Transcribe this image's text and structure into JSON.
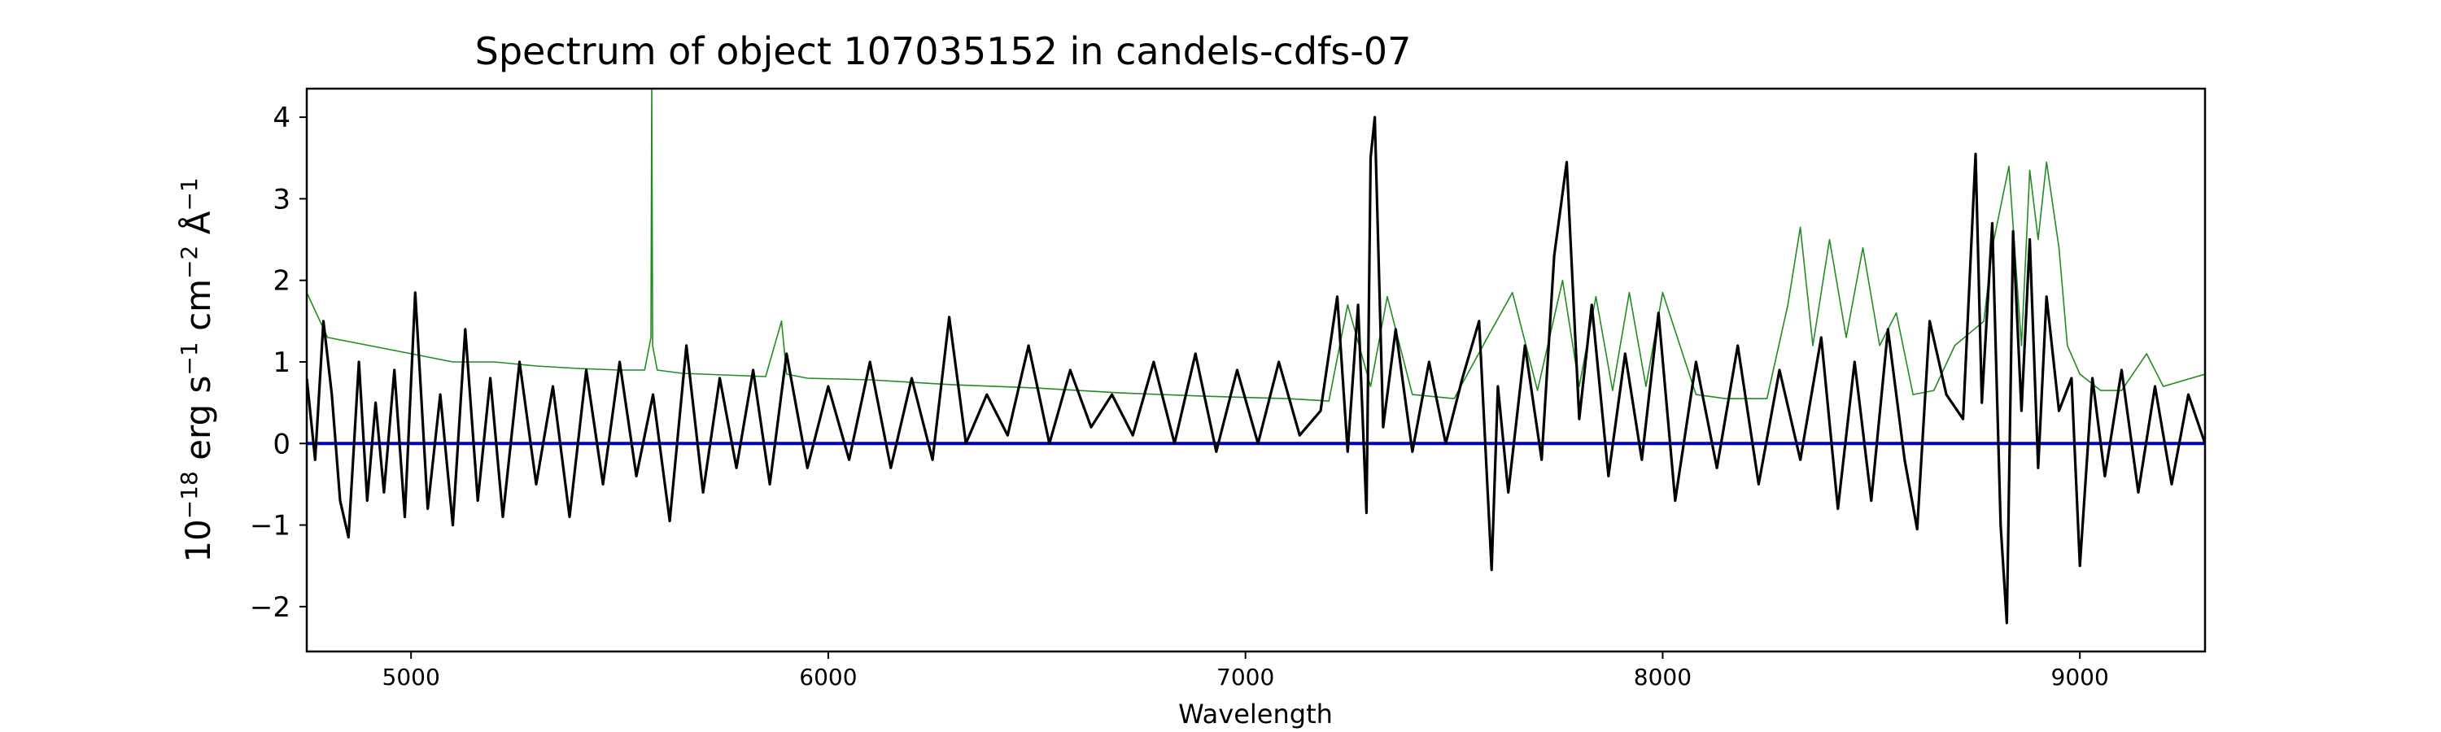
{
  "chart_data": {
    "type": "line",
    "title": "Spectrum of object 107035152 in candels-cdfs-07",
    "xlabel": "Wavelength",
    "ylabel_parts": {
      "base": "10",
      "exp": "−18",
      "units": [
        {
          "t": " erg s",
          "e": "−1"
        },
        {
          "t": " cm",
          "e": "−2"
        },
        {
          "t": " Å",
          "e": "−1"
        }
      ]
    },
    "xlim": [
      4750,
      9300
    ],
    "ylim": [
      -2.55,
      4.35
    ],
    "xticks": [
      5000,
      6000,
      7000,
      8000,
      9000
    ],
    "xtick_labels": [
      "5000",
      "6000",
      "7000",
      "8000",
      "9000"
    ],
    "yticks": [
      -2,
      -1,
      0,
      1,
      2,
      3,
      4
    ],
    "ytick_labels": [
      "−2",
      "−1",
      "0",
      "1",
      "2",
      "3",
      "4"
    ],
    "grid": false,
    "series": [
      {
        "role": "zero-line",
        "color": "#0000cc",
        "x": [
          4750,
          9300
        ],
        "y": [
          0,
          0
        ]
      },
      {
        "role": "noise",
        "color": "#228b22",
        "x": [
          4750,
          4800,
          4850,
          4900,
          5000,
          5100,
          5200,
          5300,
          5400,
          5500,
          5560,
          5575,
          5577,
          5579,
          5590,
          5650,
          5750,
          5850,
          5888,
          5900,
          5950,
          6100,
          6300,
          6500,
          6700,
          6900,
          7100,
          7200,
          7245,
          7300,
          7340,
          7400,
          7500,
          7580,
          7640,
          7700,
          7760,
          7800,
          7840,
          7880,
          7920,
          7960,
          8000,
          8080,
          8150,
          8250,
          8300,
          8330,
          8360,
          8400,
          8440,
          8480,
          8520,
          8560,
          8600,
          8650,
          8700,
          8770,
          8790,
          8830,
          8860,
          8880,
          8900,
          8920,
          8950,
          8970,
          9000,
          9050,
          9100,
          9160,
          9200,
          9300
        ],
        "y": [
          1.85,
          1.3,
          1.25,
          1.2,
          1.1,
          1.0,
          1.0,
          0.95,
          0.92,
          0.9,
          0.9,
          1.3,
          4.35,
          1.2,
          0.9,
          0.86,
          0.84,
          0.82,
          1.5,
          0.85,
          0.8,
          0.78,
          0.72,
          0.68,
          0.62,
          0.58,
          0.55,
          0.52,
          1.7,
          0.7,
          1.8,
          0.6,
          0.55,
          1.3,
          1.85,
          0.65,
          2.0,
          0.7,
          1.8,
          0.65,
          1.85,
          0.7,
          1.85,
          0.6,
          0.55,
          0.55,
          1.7,
          2.65,
          1.2,
          2.5,
          1.3,
          2.4,
          1.2,
          1.6,
          0.6,
          0.65,
          1.2,
          1.5,
          2.4,
          3.4,
          1.2,
          3.35,
          2.5,
          3.45,
          2.4,
          1.2,
          0.85,
          0.65,
          0.65,
          1.1,
          0.7,
          0.85
        ]
      },
      {
        "role": "flux",
        "color": "#000000",
        "x": [
          4750,
          4770,
          4790,
          4810,
          4830,
          4850,
          4875,
          4895,
          4915,
          4935,
          4960,
          4985,
          5010,
          5040,
          5070,
          5100,
          5130,
          5160,
          5190,
          5220,
          5260,
          5300,
          5340,
          5380,
          5420,
          5460,
          5500,
          5540,
          5580,
          5620,
          5660,
          5700,
          5740,
          5780,
          5820,
          5860,
          5900,
          5950,
          6000,
          6050,
          6100,
          6150,
          6200,
          6250,
          6290,
          6330,
          6380,
          6430,
          6480,
          6530,
          6580,
          6630,
          6680,
          6730,
          6780,
          6830,
          6880,
          6930,
          6980,
          7030,
          7080,
          7130,
          7180,
          7220,
          7245,
          7270,
          7290,
          7300,
          7310,
          7330,
          7360,
          7400,
          7440,
          7480,
          7520,
          7560,
          7590,
          7605,
          7630,
          7670,
          7710,
          7740,
          7770,
          7800,
          7830,
          7870,
          7910,
          7950,
          7990,
          8030,
          8080,
          8130,
          8180,
          8230,
          8280,
          8330,
          8380,
          8420,
          8460,
          8500,
          8540,
          8580,
          8610,
          8640,
          8680,
          8720,
          8750,
          8765,
          8790,
          8810,
          8825,
          8840,
          8860,
          8880,
          8900,
          8920,
          8950,
          8980,
          9000,
          9030,
          9060,
          9100,
          9140,
          9180,
          9220,
          9260,
          9300
        ],
        "y": [
          0.8,
          -0.2,
          1.5,
          0.6,
          -0.7,
          -1.15,
          1.0,
          -0.7,
          0.5,
          -0.6,
          0.9,
          -0.9,
          1.85,
          -0.8,
          0.6,
          -1.0,
          1.4,
          -0.7,
          0.8,
          -0.9,
          1.0,
          -0.5,
          0.7,
          -0.9,
          0.9,
          -0.5,
          1.0,
          -0.4,
          0.6,
          -0.95,
          1.2,
          -0.6,
          0.8,
          -0.3,
          0.9,
          -0.5,
          1.1,
          -0.3,
          0.7,
          -0.2,
          1.0,
          -0.3,
          0.8,
          -0.2,
          1.55,
          0.0,
          0.6,
          0.1,
          1.2,
          0.0,
          0.9,
          0.2,
          0.6,
          0.1,
          1.0,
          0.0,
          1.1,
          -0.1,
          0.9,
          0.0,
          1.0,
          0.1,
          0.4,
          1.8,
          -0.1,
          1.7,
          -0.85,
          3.5,
          4.0,
          0.2,
          1.4,
          -0.1,
          1.0,
          0.0,
          0.8,
          1.5,
          -1.55,
          0.7,
          -0.6,
          1.2,
          -0.2,
          2.3,
          3.45,
          0.3,
          1.7,
          -0.4,
          1.1,
          -0.2,
          1.6,
          -0.7,
          1.0,
          -0.3,
          1.2,
          -0.5,
          0.9,
          -0.2,
          1.3,
          -0.8,
          1.0,
          -0.7,
          1.4,
          -0.2,
          -1.05,
          1.5,
          0.6,
          0.3,
          3.55,
          0.5,
          2.7,
          -1.0,
          -2.2,
          2.6,
          0.4,
          2.5,
          -0.3,
          1.8,
          0.4,
          0.8,
          -1.5,
          0.8,
          -0.4,
          0.9,
          -0.6,
          0.7,
          -0.5,
          0.6,
          0.0
        ]
      }
    ]
  }
}
